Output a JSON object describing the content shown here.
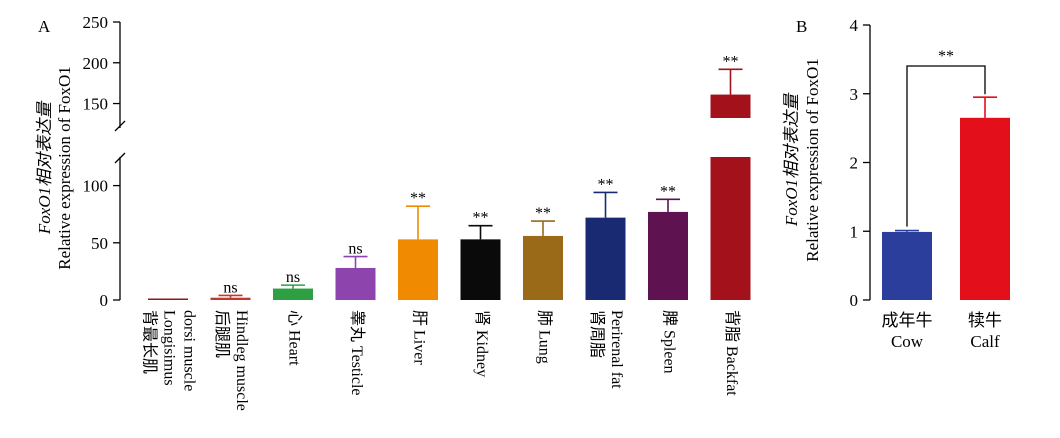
{
  "chart_data": [
    {
      "panel": "A",
      "type": "bar",
      "ylabel_line1": "FoxO1相对表达量",
      "ylabel_line2": "Relative expression of FoxO1",
      "y_lower_ticks": [
        0,
        50,
        100
      ],
      "y_upper_ticks": [
        150,
        200,
        250
      ],
      "y_break": [
        125,
        120
      ],
      "categories": [
        {
          "zh": "背最长肌",
          "en": [
            "Longisimus",
            "dorsi muscle"
          ],
          "value": 1,
          "error": 0,
          "sig": "",
          "color": "#8b1a1a"
        },
        {
          "zh": "后腿肌",
          "en": [
            "Hindleg muscle"
          ],
          "value": 2,
          "error": 2,
          "sig": "ns",
          "color": "#c0392b"
        },
        {
          "zh": "心",
          "en": [
            "Heart"
          ],
          "value": 10,
          "error": 3,
          "sig": "ns",
          "color": "#2ea043"
        },
        {
          "zh": "睾丸",
          "en": [
            "Testicle"
          ],
          "value": 28,
          "error": 10,
          "sig": "ns",
          "color": "#8e44ad"
        },
        {
          "zh": "肝",
          "en": [
            "Liver"
          ],
          "value": 53,
          "error": 29,
          "sig": "**",
          "color": "#f08a00"
        },
        {
          "zh": "肾",
          "en": [
            "Kidney"
          ],
          "value": 53,
          "error": 12,
          "sig": "**",
          "color": "#0a0a0a"
        },
        {
          "zh": "肺",
          "en": [
            "Lung"
          ],
          "value": 56,
          "error": 13,
          "sig": "**",
          "color": "#9a6a18"
        },
        {
          "zh": "肾周脂",
          "en": [
            "Perirenal fat"
          ],
          "value": 72,
          "error": 22,
          "sig": "**",
          "color": "#1a2a72"
        },
        {
          "zh": "脾",
          "en": [
            "Spleen"
          ],
          "value": 77,
          "error": 11,
          "sig": "**",
          "color": "#5e1250"
        },
        {
          "zh": "背脂",
          "en": [
            "Backfat"
          ],
          "value": 161,
          "error": 31,
          "sig": "**",
          "color": "#a3111a"
        }
      ]
    },
    {
      "panel": "B",
      "type": "bar",
      "ylabel_line1": "FoxO1相对表达量",
      "ylabel_line2": "Relative expression of FoxO1",
      "ylim": [
        0,
        4
      ],
      "y_ticks": [
        0,
        1,
        2,
        3,
        4
      ],
      "categories": [
        {
          "zh": "成年牛",
          "en": "Cow",
          "value": 0.99,
          "error": 0.02,
          "color": "#2c3e9c"
        },
        {
          "zh": "犊牛",
          "en": "Calf",
          "value": 2.65,
          "error": 0.3,
          "color": "#e30f1b"
        }
      ],
      "comparison": {
        "from": 0,
        "to": 1,
        "label": "**"
      }
    }
  ]
}
